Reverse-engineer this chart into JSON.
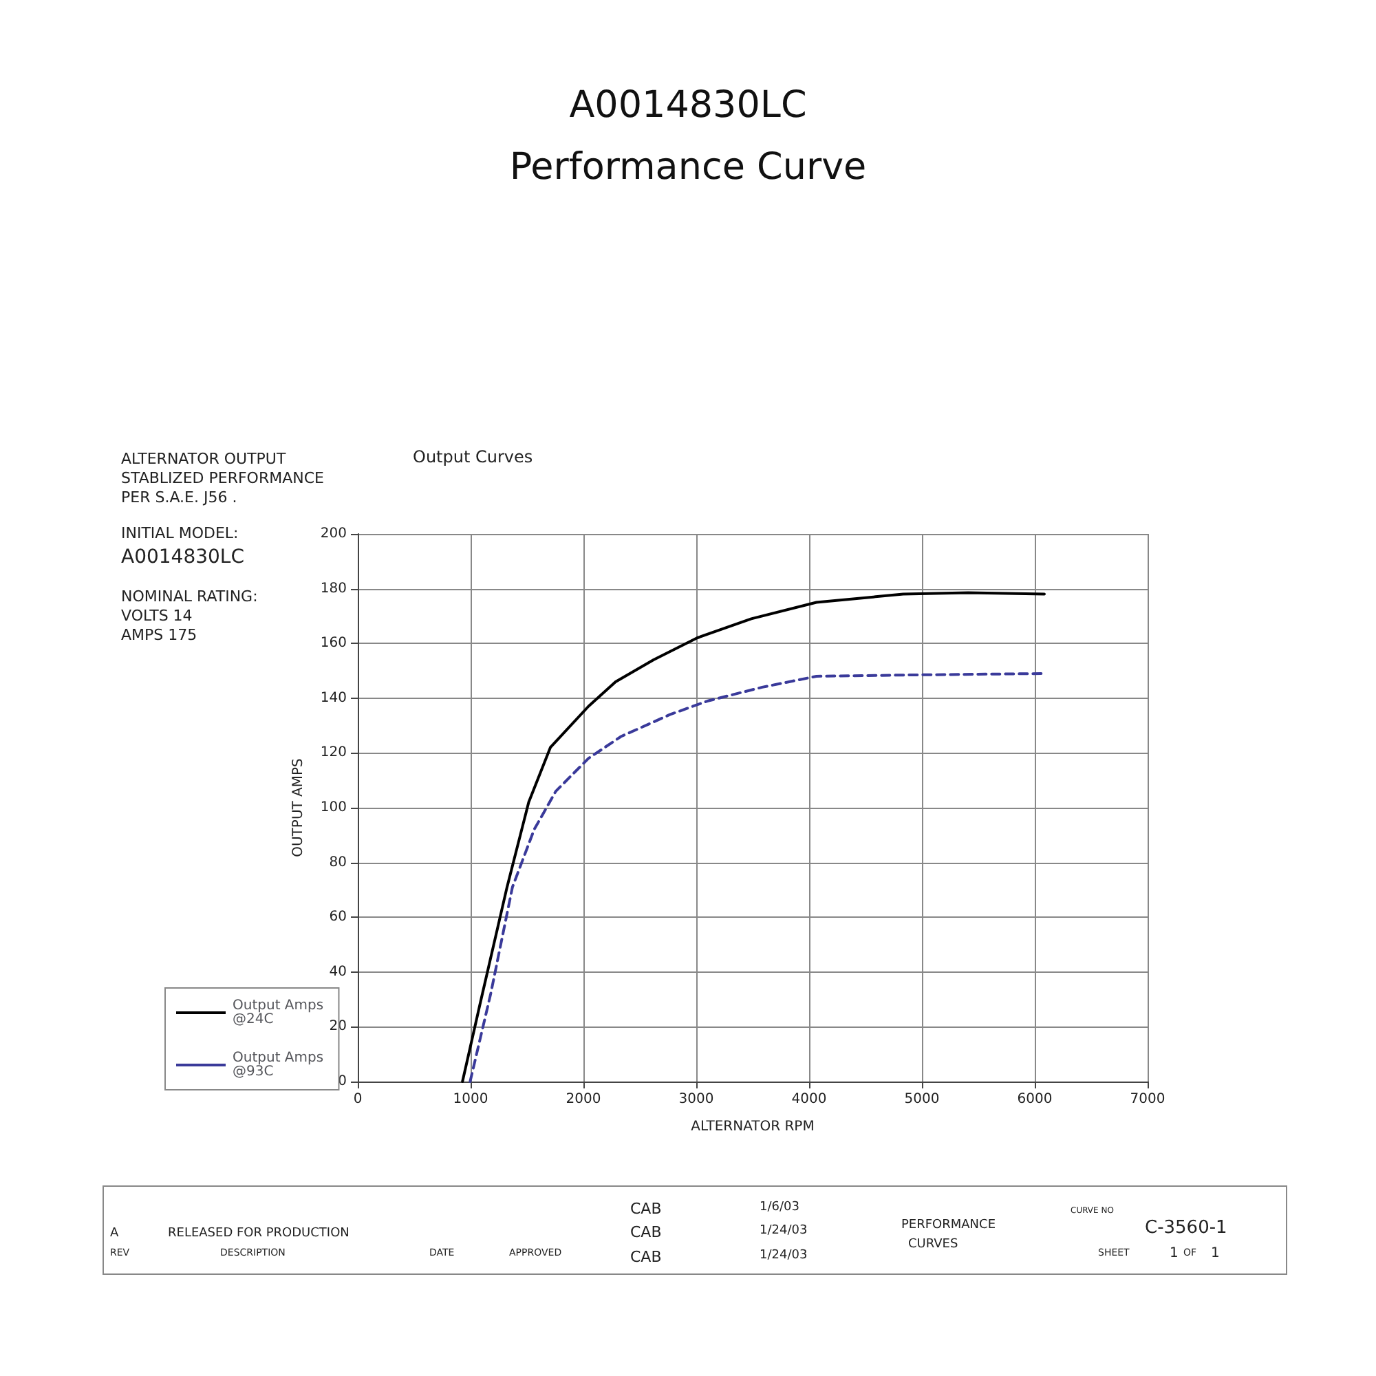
{
  "chart_data": {
    "type": "line",
    "title": "A0014830LC",
    "subtitle": "Performance Curve",
    "xlabel": "ALTERNATOR RPM",
    "ylabel": "OUTPUT AMPS",
    "xlim": [
      0,
      7000
    ],
    "xticks": [
      0,
      1000,
      2000,
      3000,
      4000,
      5000,
      6000,
      7000
    ],
    "ylim": [
      0,
      200
    ],
    "yticks": [
      0,
      20,
      40,
      60,
      80,
      100,
      120,
      140,
      160,
      180,
      200
    ],
    "grid": true,
    "legend": "bottom left",
    "marker": "none",
    "series": [
      {
        "name": "Output Amps @24C",
        "color": "#000000",
        "line_style": "solid",
        "x": [
          928,
          1082,
          1323,
          1515,
          1707,
          2044,
          2285,
          2622,
          3007,
          3488,
          4065,
          4834,
          5411,
          6085
        ],
        "values": [
          0,
          28,
          71,
          102,
          122,
          137,
          146,
          154,
          162,
          169,
          175,
          178,
          178.5,
          178
        ]
      },
      {
        "name": "Output Amps @93C",
        "color": "#3a3a9a",
        "line_style": "dashed",
        "x": [
          996,
          1178,
          1371,
          1563,
          1755,
          2044,
          2333,
          2766,
          3103,
          3584,
          4065,
          4931,
          6085
        ],
        "values": [
          0,
          32,
          71,
          92,
          106,
          118,
          126,
          134,
          139,
          144,
          148,
          148.5,
          149
        ]
      }
    ],
    "annotations": [
      "ALTERNATOR OUTPUT",
      "STABLIZED PERFORMANCE",
      "PER S.A.E. J56 .",
      "INITIAL MODEL:",
      "A0014830LC",
      "NOMINAL RATING:",
      "VOLTS 14",
      "AMPS 175",
      "Output Curves",
      "A",
      "RELEASED FOR PRODUCTION",
      "REV",
      "DESCRIPTION",
      "DATE",
      "APPROVED",
      "CAB",
      "1/6/03",
      "CAB",
      "1/24/03",
      "CAB",
      "1/24/03",
      "PERFORMANCE",
      "CURVES",
      "CURVE NO",
      "C-3560-1",
      "SHEET",
      "1",
      "OF",
      "1"
    ]
  }
}
